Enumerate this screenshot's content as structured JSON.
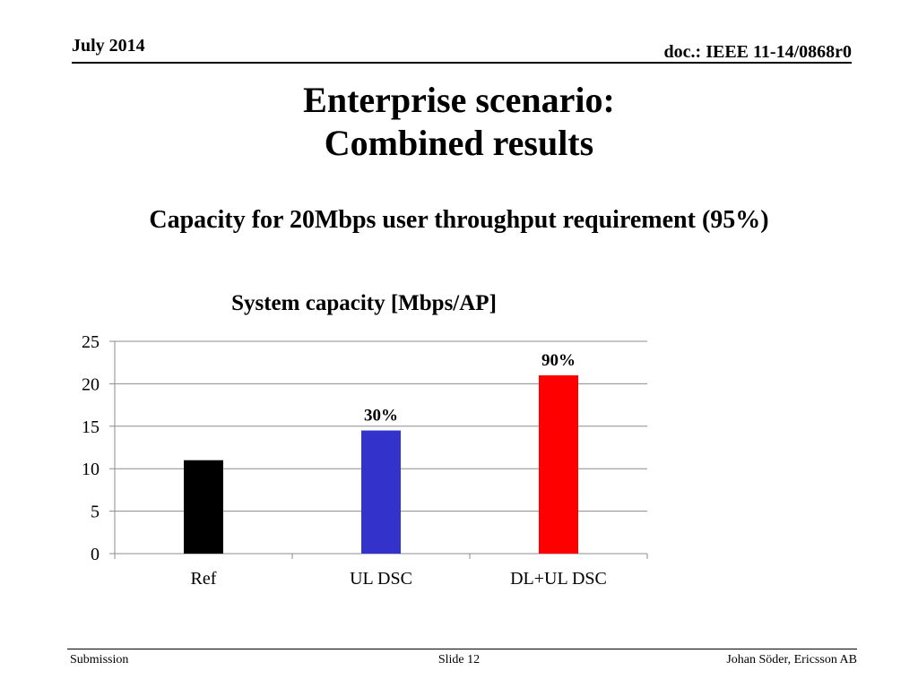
{
  "header": {
    "date": "July 2014",
    "doc": "doc.: IEEE 11-14/0868r0"
  },
  "title": {
    "line1": "Enterprise scenario:",
    "line2": "Combined results"
  },
  "subtitle": "Capacity for 20Mbps user throughput requirement (95%)",
  "chart_data": {
    "type": "bar",
    "title": "System capacity [Mbps/AP]",
    "categories": [
      "Ref",
      "UL DSC",
      "DL+UL DSC"
    ],
    "values": [
      11,
      14.5,
      21
    ],
    "data_labels": [
      "",
      "30%",
      "90%"
    ],
    "colors": [
      "#000000",
      "#3333cc",
      "#ff0000"
    ],
    "ylim": [
      0,
      25
    ],
    "yticks": [
      0,
      5,
      10,
      15,
      20,
      25
    ],
    "grid": true,
    "xlabel": "",
    "ylabel": ""
  },
  "footer": {
    "left": "Submission",
    "center": "Slide 12",
    "right": "Johan Söder, Ericsson AB"
  }
}
